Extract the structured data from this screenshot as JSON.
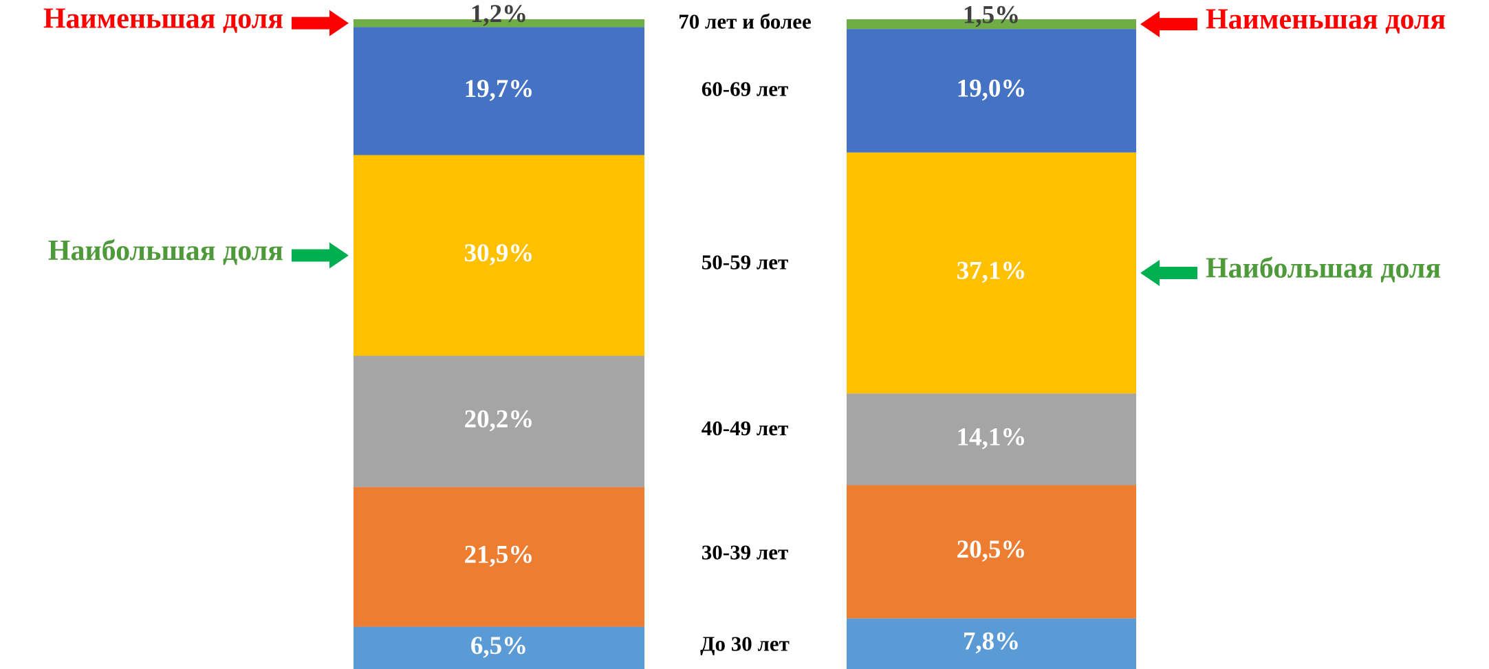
{
  "chart_data": {
    "type": "stacked_bar",
    "categories": [
      null,
      null
    ],
    "series": [
      {
        "name": "До 30 лет",
        "color": "#5b9bd5",
        "values": [
          6.5,
          7.8
        ],
        "value_labels": [
          "6,5%",
          "7,8%"
        ]
      },
      {
        "name": "30-39 лет",
        "color": "#ed7d31",
        "values": [
          21.5,
          20.5
        ],
        "value_labels": [
          "21,5%",
          "20,5%"
        ]
      },
      {
        "name": "40-49 лет",
        "color": "#a5a5a5",
        "values": [
          20.2,
          14.1
        ],
        "value_labels": [
          "20,2%",
          "14,1%"
        ]
      },
      {
        "name": "50-59 лет",
        "color": "#ffc000",
        "values": [
          30.9,
          37.1
        ],
        "value_labels": [
          "30,9%",
          "37,1%"
        ]
      },
      {
        "name": "60-69 лет",
        "color": "#4472c4",
        "values": [
          19.7,
          19.0
        ],
        "value_labels": [
          "19,7%",
          "19,0%"
        ]
      },
      {
        "name": "70 лет и более",
        "color": "#70ad47",
        "values": [
          1.2,
          1.5
        ],
        "value_labels": [
          "1,2%",
          "1,5%"
        ]
      }
    ],
    "ylim": [
      0,
      100
    ],
    "annotations": [
      {
        "text": "Наименьшая доля",
        "color": "#ff0000",
        "arrow_color": "#ff0000"
      },
      {
        "text": "Наибольшая доля",
        "color": "#4e9a3a",
        "arrow_color": "#00b050"
      },
      {
        "text": "Наименьшая доля",
        "color": "#ff0000",
        "arrow_color": "#ff0000"
      },
      {
        "text": "Наибольшая доля",
        "color": "#4e9a3a",
        "arrow_color": "#00b050"
      }
    ]
  }
}
